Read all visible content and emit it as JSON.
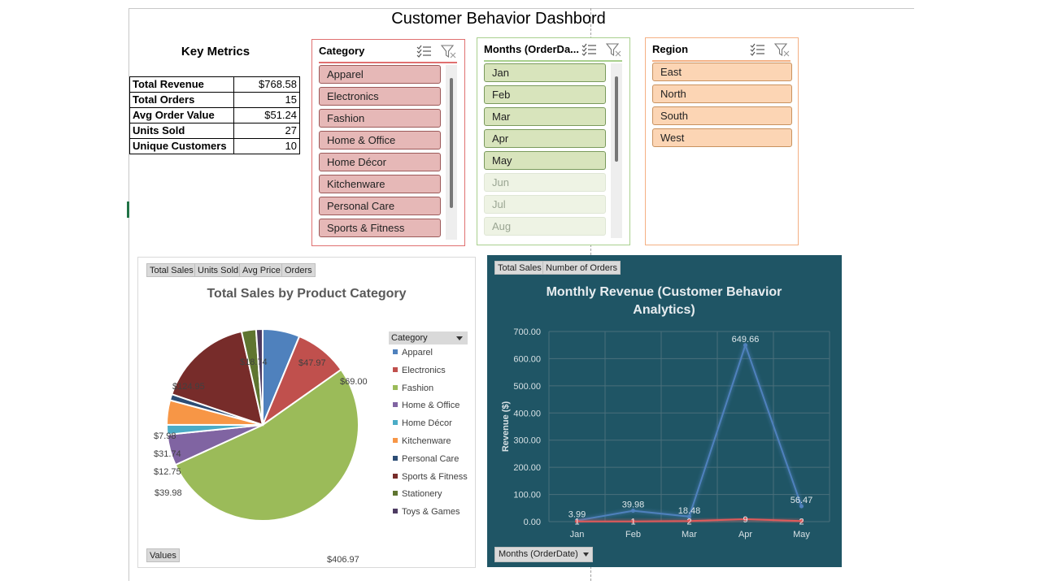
{
  "dashboard": {
    "title": "Customer Behavior Dashbord"
  },
  "key_metrics": {
    "title": "Key Metrics",
    "rows": [
      {
        "label": "Total Revenue",
        "value": "$768.58"
      },
      {
        "label": "Total Orders",
        "value": "15"
      },
      {
        "label": "Avg Order Value",
        "value": "$51.24"
      },
      {
        "label": "Units Sold",
        "value": "27"
      },
      {
        "label": "Unique Customers",
        "value": "10"
      }
    ]
  },
  "slicers": {
    "category": {
      "header": "Category",
      "items": [
        "Apparel",
        "Electronics",
        "Fashion",
        "Home & Office",
        "Home Décor",
        "Kitchenware",
        "Personal Care",
        "Sports & Fitness"
      ],
      "colors": {
        "border": "#e07070",
        "fill": "#e6b8b7",
        "item_border": "#9c5a5a"
      }
    },
    "months": {
      "header": "Months (OrderDa...",
      "items": [
        "Jan",
        "Feb",
        "Mar",
        "Apr",
        "May",
        "Jun",
        "Jul",
        "Aug"
      ],
      "selected_count": 5,
      "colors": {
        "border": "#a9d08e",
        "fill": "#d8e4bc",
        "item_border": "#7a9a5c",
        "dim_fill": "#eef3e4",
        "dim_text": "#9aa592"
      }
    },
    "region": {
      "header": "Region",
      "items": [
        "East",
        "North",
        "South",
        "West"
      ],
      "colors": {
        "border": "#f4b084",
        "fill": "#fcd5b4",
        "item_border": "#c8925f"
      }
    },
    "icons": {
      "multiselect": "multi-select-icon",
      "clear_filter": "clear-filter-icon"
    }
  },
  "pie_chart": {
    "field_buttons": [
      "Total Sales",
      "Units Sold",
      "Avg Price",
      "Orders"
    ],
    "values_button": "Values",
    "legend_header": "Category",
    "legend_dropdown_icon": "dropdown-arrow-icon"
  },
  "line_chart": {
    "field_buttons": [
      "Total Sales",
      "Number of Orders"
    ],
    "month_button": "Months (OrderDate)",
    "month_dropdown_icon": "dropdown-arrow-icon"
  },
  "chart_data": [
    {
      "type": "pie",
      "title": "Total Sales by Product Category",
      "categories": [
        "Apparel",
        "Electronics",
        "Fashion",
        "Home & Office",
        "Home Décor",
        "Kitchenware",
        "Personal Care",
        "Sports & Fitness",
        "Stationery",
        "Toys & Games"
      ],
      "values": [
        47.97,
        69.0,
        406.97,
        39.98,
        12.75,
        31.74,
        7.98,
        124.95,
        18.74,
        8.5
      ],
      "data_labels": [
        "$47.97",
        "$69.00",
        "$406.97",
        "$39.98",
        "$12.75",
        "$31.74",
        "$7.98",
        "$124.95",
        "$18.74",
        ""
      ],
      "colors": [
        "#4f81bd",
        "#c0504d",
        "#9bbb59",
        "#8064a2",
        "#4bacc6",
        "#f79646",
        "#2c4d75",
        "#772c2a",
        "#5f7530",
        "#4d3b62"
      ],
      "legend": "right"
    },
    {
      "type": "line",
      "title": "Monthly Revenue (Customer Behavior Analytics)",
      "ylabel": "Revenue ($)",
      "xlabel": "",
      "categories": [
        "Jan",
        "Feb",
        "Mar",
        "Apr",
        "May"
      ],
      "ylim": [
        0,
        700
      ],
      "y_ticks": [
        "0.00",
        "100.00",
        "200.00",
        "300.00",
        "400.00",
        "500.00",
        "600.00",
        "700.00"
      ],
      "grid": true,
      "series": [
        {
          "values": [
            3.99,
            39.98,
            18.48,
            649.66,
            56.47
          ],
          "labels": [
            "3.99",
            "39.98",
            "18.48",
            "649.66",
            "56.47"
          ],
          "color": "#4f81bd"
        },
        {
          "values": [
            1,
            1,
            2,
            9,
            2
          ],
          "labels": [
            "1",
            "1",
            "2",
            "9",
            "2"
          ],
          "color": "#e05a5a"
        }
      ]
    }
  ]
}
